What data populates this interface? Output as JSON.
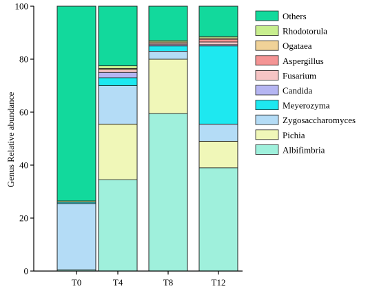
{
  "chart_data": {
    "type": "bar",
    "stacked": true,
    "ylabel": "Genus Relative abundance",
    "xlabel": "",
    "ylim": [
      0,
      100
    ],
    "yticks": [
      "0",
      "20",
      "40",
      "60",
      "80",
      "100"
    ],
    "categories": [
      "T0",
      "T4",
      "T8",
      "T12"
    ],
    "legend_position": "right",
    "series": [
      {
        "name": "Albifimbria",
        "color": "#9ff0dc",
        "values": [
          0.5,
          34.5,
          59.5,
          39.0
        ]
      },
      {
        "name": "Pichia",
        "color": "#f0f7b8",
        "values": [
          0.0,
          21.0,
          20.5,
          10.0
        ]
      },
      {
        "name": "Zygosaccharomyces",
        "color": "#b4dcf6",
        "values": [
          25.0,
          14.5,
          3.0,
          6.5
        ]
      },
      {
        "name": "Meyerozyma",
        "color": "#1ee8f0",
        "values": [
          0.5,
          3.0,
          2.0,
          29.5
        ]
      },
      {
        "name": "Candida",
        "color": "#b5b5f2",
        "values": [
          0.0,
          2.0,
          0.5,
          0.5
        ]
      },
      {
        "name": "Fusarium",
        "color": "#f6c4c4",
        "values": [
          0.0,
          1.0,
          0.5,
          1.0
        ]
      },
      {
        "name": "Aspergillus",
        "color": "#f49494",
        "values": [
          0.0,
          0.0,
          0.0,
          1.0
        ]
      },
      {
        "name": "Ogataea",
        "color": "#f0d298",
        "values": [
          0.0,
          0.5,
          0.5,
          0.5
        ]
      },
      {
        "name": "Rhodotorula",
        "color": "#c8ee8e",
        "values": [
          0.5,
          1.0,
          0.5,
          0.5
        ]
      },
      {
        "name": "Others",
        "color": "#12d99c",
        "values": [
          73.5,
          22.5,
          13.0,
          11.5
        ]
      }
    ]
  }
}
